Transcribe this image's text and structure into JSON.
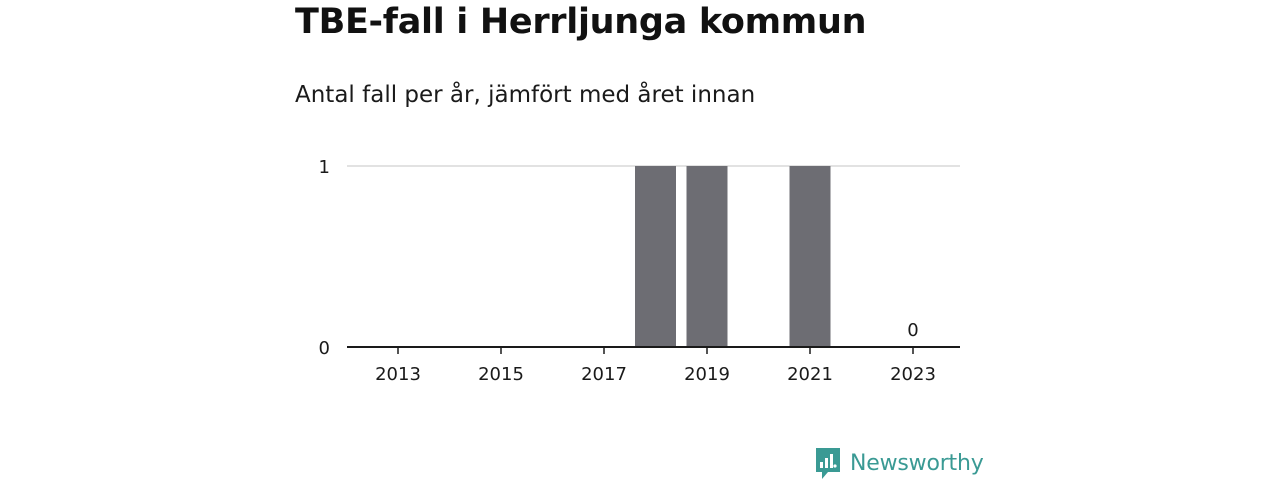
{
  "title": "TBE-fall i Herrljunga kommun",
  "subtitle": "Antal fall per år, jämfört med året innan",
  "brand": {
    "name": "Newsworthy",
    "color": "#3a9a94",
    "icon": "newsworthy-logo-icon"
  },
  "chart_data": {
    "type": "bar",
    "title": "TBE-fall i Herrljunga kommun",
    "subtitle": "Antal fall per år, jämfört med året innan",
    "categories": [
      "2013",
      "2014",
      "2015",
      "2016",
      "2017",
      "2018",
      "2019",
      "2020",
      "2021",
      "2022",
      "2023"
    ],
    "values": [
      0,
      0,
      0,
      0,
      0,
      1,
      1,
      0,
      1,
      0,
      0
    ],
    "x_tick_labels": [
      "2013",
      "2015",
      "2017",
      "2019",
      "2021",
      "2023"
    ],
    "y_tick_labels": [
      "0",
      "1"
    ],
    "ylim": [
      0,
      1
    ],
    "annotations": [
      {
        "category": "2023",
        "text": "0"
      }
    ],
    "bar_color": "#6d6d73",
    "grid": true,
    "xlabel": "",
    "ylabel": ""
  }
}
